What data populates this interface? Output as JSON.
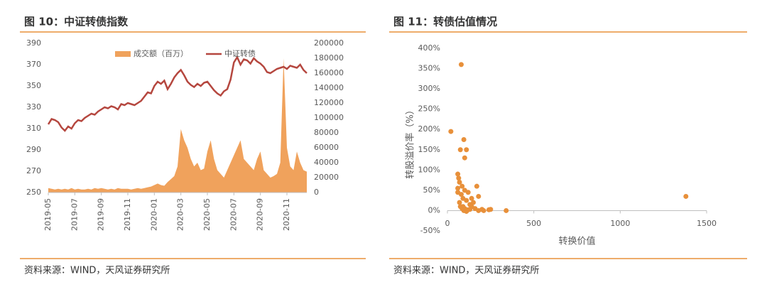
{
  "chart_data": [
    {
      "type": "combo",
      "title": "图 10：中证转债指数",
      "source": "资料来源：WIND，天风证券研究所",
      "categories": [
        "2019-05",
        null,
        null,
        null,
        null,
        null,
        null,
        null,
        "2019-07",
        null,
        null,
        null,
        null,
        null,
        null,
        null,
        "2019-09",
        null,
        null,
        null,
        null,
        null,
        null,
        null,
        "2019-11",
        null,
        null,
        null,
        null,
        null,
        null,
        null,
        "2020-01",
        null,
        null,
        null,
        null,
        null,
        null,
        null,
        "2020-03",
        null,
        null,
        null,
        null,
        null,
        null,
        null,
        "2020-05",
        null,
        null,
        null,
        null,
        null,
        null,
        null,
        "2020-07",
        null,
        null,
        null,
        null,
        null,
        null,
        null,
        "2020-09",
        null,
        null,
        null,
        null,
        null,
        null,
        null,
        "2020-11",
        null,
        null,
        null,
        null,
        null,
        null
      ],
      "ylim": [
        250,
        390
      ],
      "yticks": [
        250,
        270,
        290,
        310,
        330,
        350,
        370,
        390
      ],
      "y2lim": [
        0,
        200000
      ],
      "y2ticks": [
        0,
        20000,
        40000,
        60000,
        80000,
        100000,
        120000,
        140000,
        160000,
        180000,
        200000
      ],
      "series": [
        {
          "name": "成交额（百万）",
          "color": "#f0a25c",
          "kind": "area",
          "axis": "y2",
          "values": [
            6000,
            5000,
            4000,
            5000,
            4000,
            5000,
            4000,
            6000,
            4000,
            5000,
            4000,
            4000,
            5000,
            4000,
            6000,
            5000,
            6000,
            5000,
            4000,
            5000,
            4000,
            6000,
            5000,
            5000,
            5000,
            4000,
            5000,
            6000,
            5000,
            6000,
            7000,
            8000,
            10000,
            12000,
            10000,
            9000,
            14000,
            18000,
            22000,
            35000,
            85000,
            70000,
            60000,
            45000,
            35000,
            40000,
            30000,
            32000,
            55000,
            70000,
            45000,
            30000,
            25000,
            20000,
            30000,
            40000,
            50000,
            60000,
            70000,
            45000,
            40000,
            35000,
            30000,
            45000,
            55000,
            30000,
            25000,
            20000,
            22000,
            25000,
            40000,
            180000,
            60000,
            35000,
            30000,
            55000,
            40000,
            30000,
            28000
          ]
        },
        {
          "name": "中证转债",
          "color": "#b5473f",
          "kind": "line",
          "values": [
            314,
            319,
            318,
            316,
            311,
            308,
            312,
            310,
            315,
            318,
            317,
            320,
            322,
            324,
            323,
            326,
            328,
            330,
            329,
            331,
            330,
            328,
            333,
            332,
            334,
            333,
            332,
            334,
            336,
            340,
            344,
            343,
            350,
            354,
            352,
            355,
            347,
            352,
            358,
            362,
            365,
            360,
            354,
            351,
            349,
            352,
            350,
            353,
            354,
            350,
            346,
            343,
            341,
            345,
            347,
            356,
            372,
            377,
            370,
            375,
            374,
            371,
            376,
            373,
            371,
            368,
            363,
            362,
            364,
            366,
            367,
            368,
            366,
            369,
            368,
            367,
            370,
            365,
            362
          ]
        }
      ]
    },
    {
      "type": "scatter",
      "title": "图 11：转债估值情况",
      "source": "资料来源：WIND，天风证券研究所",
      "xlabel": "转换价值",
      "ylabel": "转股溢价率（%）",
      "color": "#e8903a",
      "xlim": [
        0,
        1500
      ],
      "xticks": [
        0,
        500,
        1000,
        1500
      ],
      "ylim": [
        -50,
        400
      ],
      "yticks": [
        {
          "value": -50,
          "label": "-50%"
        },
        {
          "value": 0,
          "label": "0%"
        },
        {
          "value": 50,
          "label": "50%"
        },
        {
          "value": 100,
          "label": "100%"
        },
        {
          "value": 150,
          "label": "150%"
        },
        {
          "value": 200,
          "label": "200%"
        },
        {
          "value": 250,
          "label": "250%"
        },
        {
          "value": 300,
          "label": "300%"
        },
        {
          "value": 350,
          "label": "350%"
        },
        {
          "value": 400,
          "label": "400%"
        }
      ],
      "x": [
        80,
        20,
        95,
        75,
        110,
        100,
        60,
        65,
        70,
        85,
        60,
        100,
        120,
        170,
        180,
        150,
        80,
        90,
        110,
        130,
        70,
        140,
        160,
        200,
        240,
        250,
        180,
        120,
        100,
        90,
        95,
        110,
        130,
        210,
        340,
        1380,
        75,
        85,
        140,
        60
      ],
      "values": [
        360,
        195,
        175,
        150,
        150,
        130,
        90,
        80,
        70,
        60,
        55,
        50,
        45,
        60,
        35,
        20,
        40,
        30,
        25,
        15,
        20,
        10,
        5,
        3,
        2,
        3,
        0,
        2,
        5,
        10,
        0,
        -2,
        3,
        0,
        0,
        35,
        10,
        5,
        30,
        45
      ]
    }
  ]
}
